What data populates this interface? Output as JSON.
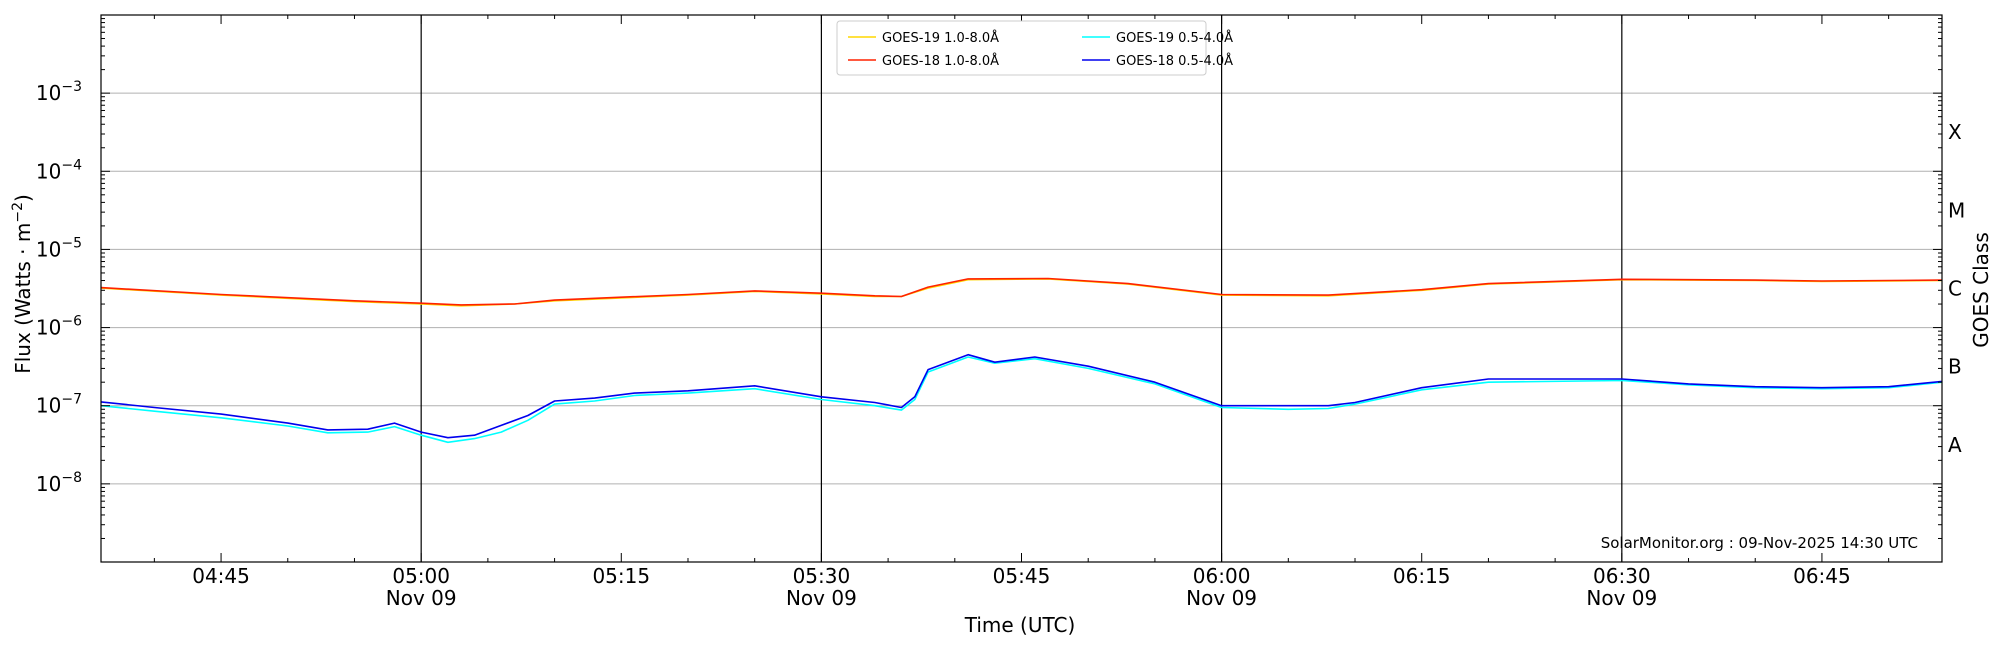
{
  "chart_data": {
    "type": "line",
    "xlabel": "Time (UTC)",
    "ylabel_main": "Flux (Watts · m",
    "ylabel_sup": "−2",
    "ylabel_close": ")",
    "ylabel_right": "GOES Class",
    "credit": "SolarMonitor.org : 09-Nov-2025 14:30 UTC",
    "x_range": [
      "04:36",
      "06:54"
    ],
    "y_scale": "log",
    "y_range": [
      1e-09,
      0.01
    ],
    "grid": "horizontal at y decades",
    "legend_position": "top-center",
    "x_ticks": [
      {
        "time": "04:45",
        "label": "04:45",
        "sub": ""
      },
      {
        "time": "05:00",
        "label": "05:00",
        "sub": "Nov 09"
      },
      {
        "time": "05:15",
        "label": "05:15",
        "sub": ""
      },
      {
        "time": "05:30",
        "label": "05:30",
        "sub": "Nov 09"
      },
      {
        "time": "05:45",
        "label": "05:45",
        "sub": ""
      },
      {
        "time": "06:00",
        "label": "06:00",
        "sub": "Nov 09"
      },
      {
        "time": "06:15",
        "label": "06:15",
        "sub": ""
      },
      {
        "time": "06:30",
        "label": "06:30",
        "sub": "Nov 09"
      },
      {
        "time": "06:45",
        "label": "06:45",
        "sub": ""
      }
    ],
    "vlines": [
      "05:00",
      "05:30",
      "06:00",
      "06:30"
    ],
    "y_ticks": [
      {
        "exp": -3,
        "label": "10",
        "sup": "−3"
      },
      {
        "exp": -4,
        "label": "10",
        "sup": "−4"
      },
      {
        "exp": -5,
        "label": "10",
        "sup": "−5"
      },
      {
        "exp": -6,
        "label": "10",
        "sup": "−6"
      },
      {
        "exp": -7,
        "label": "10",
        "sup": "−7"
      },
      {
        "exp": -8,
        "label": "10",
        "sup": "−8"
      }
    ],
    "goes_classes": [
      {
        "label": "X",
        "value": 0.000316
      },
      {
        "label": "M",
        "value": 3.16e-05
      },
      {
        "label": "C",
        "value": 3.16e-06
      },
      {
        "label": "B",
        "value": 3.16e-07
      },
      {
        "label": "A",
        "value": 3.16e-08
      }
    ],
    "legend": [
      {
        "name": "GOES-19 1.0-8.0Å",
        "color": "#ffd700"
      },
      {
        "name": "GOES-19 0.5-4.0Å",
        "color": "#00ffff"
      },
      {
        "name": "GOES-18 1.0-8.0Å",
        "color": "#ff2200"
      },
      {
        "name": "GOES-18 0.5-4.0Å",
        "color": "#0000ee"
      }
    ],
    "series": [
      {
        "name": "GOES-19 1.0-8.0Å",
        "color": "#ffd700",
        "points": [
          [
            "04:36",
            3.2e-06
          ],
          [
            "04:45",
            2.6e-06
          ],
          [
            "04:55",
            2.15e-06
          ],
          [
            "05:00",
            2e-06
          ],
          [
            "05:03",
            1.9e-06
          ],
          [
            "05:07",
            2e-06
          ],
          [
            "05:10",
            2.2e-06
          ],
          [
            "05:15",
            2.4e-06
          ],
          [
            "05:20",
            2.6e-06
          ],
          [
            "05:25",
            2.9e-06
          ],
          [
            "05:30",
            2.7e-06
          ],
          [
            "05:34",
            2.5e-06
          ],
          [
            "05:36",
            2.5e-06
          ],
          [
            "05:38",
            3.2e-06
          ],
          [
            "05:41",
            4.1e-06
          ],
          [
            "05:47",
            4.2e-06
          ],
          [
            "05:53",
            3.6e-06
          ],
          [
            "06:00",
            2.6e-06
          ],
          [
            "06:08",
            2.55e-06
          ],
          [
            "06:15",
            3e-06
          ],
          [
            "06:20",
            3.6e-06
          ],
          [
            "06:30",
            4.1e-06
          ],
          [
            "06:40",
            4e-06
          ],
          [
            "06:45",
            3.9e-06
          ],
          [
            "06:54",
            4e-06
          ]
        ]
      },
      {
        "name": "GOES-18 1.0-8.0Å",
        "color": "#ff2200",
        "points": [
          [
            "04:36",
            3.25e-06
          ],
          [
            "04:45",
            2.65e-06
          ],
          [
            "04:55",
            2.2e-06
          ],
          [
            "05:00",
            2.05e-06
          ],
          [
            "05:03",
            1.95e-06
          ],
          [
            "05:07",
            2e-06
          ],
          [
            "05:10",
            2.25e-06
          ],
          [
            "05:15",
            2.45e-06
          ],
          [
            "05:20",
            2.65e-06
          ],
          [
            "05:25",
            2.95e-06
          ],
          [
            "05:30",
            2.75e-06
          ],
          [
            "05:34",
            2.55e-06
          ],
          [
            "05:36",
            2.5e-06
          ],
          [
            "05:38",
            3.3e-06
          ],
          [
            "05:41",
            4.2e-06
          ],
          [
            "05:47",
            4.25e-06
          ],
          [
            "05:53",
            3.65e-06
          ],
          [
            "06:00",
            2.65e-06
          ],
          [
            "06:08",
            2.6e-06
          ],
          [
            "06:15",
            3.05e-06
          ],
          [
            "06:20",
            3.65e-06
          ],
          [
            "06:30",
            4.15e-06
          ],
          [
            "06:40",
            4.05e-06
          ],
          [
            "06:45",
            3.95e-06
          ],
          [
            "06:54",
            4.05e-06
          ]
        ]
      },
      {
        "name": "GOES-19 0.5-4.0Å",
        "color": "#00ffff",
        "points": [
          [
            "04:36",
            1e-07
          ],
          [
            "04:40",
            8.5e-08
          ],
          [
            "04:45",
            7e-08
          ],
          [
            "04:50",
            5.5e-08
          ],
          [
            "04:53",
            4.5e-08
          ],
          [
            "04:56",
            4.6e-08
          ],
          [
            "04:58",
            5.4e-08
          ],
          [
            "05:00",
            4.2e-08
          ],
          [
            "05:02",
            3.4e-08
          ],
          [
            "05:04",
            3.8e-08
          ],
          [
            "05:06",
            4.6e-08
          ],
          [
            "05:08",
            6.5e-08
          ],
          [
            "05:10",
            1.05e-07
          ],
          [
            "05:13",
            1.15e-07
          ],
          [
            "05:16",
            1.35e-07
          ],
          [
            "05:20",
            1.45e-07
          ],
          [
            "05:25",
            1.65e-07
          ],
          [
            "05:30",
            1.2e-07
          ],
          [
            "05:34",
            1e-07
          ],
          [
            "05:36",
            8.8e-08
          ],
          [
            "05:37",
            1.2e-07
          ],
          [
            "05:38",
            2.7e-07
          ],
          [
            "05:41",
            4.2e-07
          ],
          [
            "05:43",
            3.5e-07
          ],
          [
            "05:46",
            4e-07
          ],
          [
            "05:50",
            3e-07
          ],
          [
            "05:55",
            1.9e-07
          ],
          [
            "06:00",
            9.5e-08
          ],
          [
            "06:05",
            9e-08
          ],
          [
            "06:08",
            9.2e-08
          ],
          [
            "06:10",
            1.05e-07
          ],
          [
            "06:15",
            1.6e-07
          ],
          [
            "06:20",
            2e-07
          ],
          [
            "06:30",
            2.1e-07
          ],
          [
            "06:35",
            1.85e-07
          ],
          [
            "06:40",
            1.7e-07
          ],
          [
            "06:45",
            1.65e-07
          ],
          [
            "06:50",
            1.7e-07
          ],
          [
            "06:54",
            2e-07
          ]
        ]
      },
      {
        "name": "GOES-18 0.5-4.0Å",
        "color": "#0000ee",
        "points": [
          [
            "04:36",
            1.12e-07
          ],
          [
            "04:40",
            9.5e-08
          ],
          [
            "04:45",
            7.8e-08
          ],
          [
            "04:50",
            6e-08
          ],
          [
            "04:53",
            4.9e-08
          ],
          [
            "04:56",
            5e-08
          ],
          [
            "04:58",
            6e-08
          ],
          [
            "05:00",
            4.6e-08
          ],
          [
            "05:02",
            3.9e-08
          ],
          [
            "05:04",
            4.2e-08
          ],
          [
            "05:06",
            5.6e-08
          ],
          [
            "05:08",
            7.5e-08
          ],
          [
            "05:10",
            1.15e-07
          ],
          [
            "05:13",
            1.25e-07
          ],
          [
            "05:16",
            1.45e-07
          ],
          [
            "05:20",
            1.55e-07
          ],
          [
            "05:25",
            1.8e-07
          ],
          [
            "05:30",
            1.3e-07
          ],
          [
            "05:34",
            1.1e-07
          ],
          [
            "05:36",
            9.5e-08
          ],
          [
            "05:37",
            1.3e-07
          ],
          [
            "05:38",
            2.9e-07
          ],
          [
            "05:41",
            4.5e-07
          ],
          [
            "05:43",
            3.6e-07
          ],
          [
            "05:46",
            4.2e-07
          ],
          [
            "05:50",
            3.2e-07
          ],
          [
            "05:55",
            2e-07
          ],
          [
            "06:00",
            1e-07
          ],
          [
            "06:05",
            1e-07
          ],
          [
            "06:08",
            1e-07
          ],
          [
            "06:10",
            1.1e-07
          ],
          [
            "06:15",
            1.7e-07
          ],
          [
            "06:20",
            2.2e-07
          ],
          [
            "06:30",
            2.2e-07
          ],
          [
            "06:35",
            1.9e-07
          ],
          [
            "06:40",
            1.75e-07
          ],
          [
            "06:45",
            1.7e-07
          ],
          [
            "06:50",
            1.75e-07
          ],
          [
            "06:54",
            2.05e-07
          ]
        ]
      }
    ]
  }
}
